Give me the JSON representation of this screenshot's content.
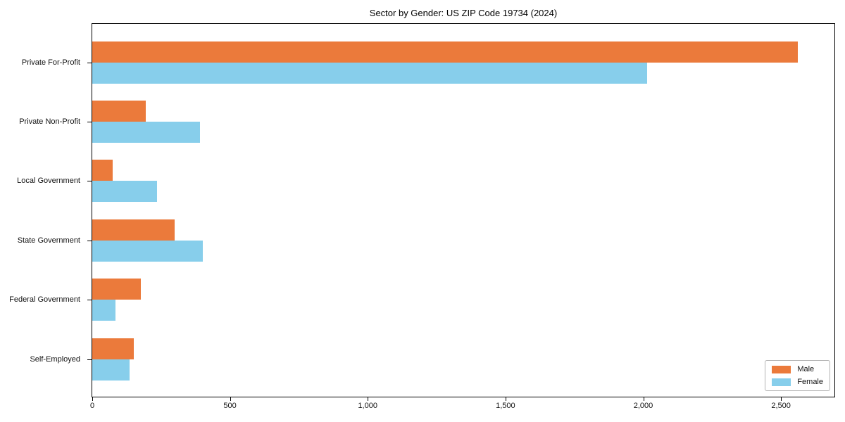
{
  "chart_data": {
    "type": "bar",
    "orientation": "horizontal",
    "title": "Sector by Gender: US ZIP Code 19734 (2024)",
    "categories": [
      "Private For-Profit",
      "Private Non-Profit",
      "Local Government",
      "State Government",
      "Federal Government",
      "Self-Employed"
    ],
    "series": [
      {
        "name": "Male",
        "color": "#EB7A3B",
        "values": [
          2560,
          195,
          75,
          300,
          175,
          150
        ]
      },
      {
        "name": "Female",
        "color": "#87CEEB",
        "values": [
          2015,
          390,
          235,
          400,
          85,
          135
        ]
      }
    ],
    "xlabel": "",
    "ylabel": "",
    "xlim": [
      0,
      2694
    ],
    "xticks": [
      0,
      500,
      1000,
      1500,
      2000,
      2500
    ],
    "xtick_labels": [
      "0",
      "500",
      "1,000",
      "1,500",
      "2,000",
      "2,500"
    ],
    "grid": false,
    "legend_position": "lower right",
    "plot_background": "#ffffff",
    "axis_color": "#000000"
  }
}
